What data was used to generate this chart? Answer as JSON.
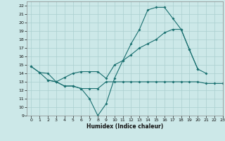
{
  "title": "",
  "xlabel": "Humidex (Indice chaleur)",
  "ylabel": "",
  "background_color": "#cce8e8",
  "grid_color": "#aacfcf",
  "line_color": "#1a7070",
  "xlim": [
    -0.5,
    23
  ],
  "ylim": [
    9,
    22.5
  ],
  "xticks": [
    0,
    1,
    2,
    3,
    4,
    5,
    6,
    7,
    8,
    9,
    10,
    11,
    12,
    13,
    14,
    15,
    16,
    17,
    18,
    19,
    20,
    21,
    22,
    23
  ],
  "yticks": [
    9,
    10,
    11,
    12,
    13,
    14,
    15,
    16,
    17,
    18,
    19,
    20,
    21,
    22
  ],
  "line1_x": [
    0,
    1,
    2,
    3,
    4,
    5,
    6,
    7,
    8,
    9,
    10,
    11,
    12,
    13,
    14,
    15,
    16,
    17,
    18,
    19,
    20,
    21
  ],
  "line1_y": [
    14.8,
    14.1,
    14.0,
    13.0,
    12.5,
    12.5,
    12.2,
    11.0,
    9.0,
    10.4,
    13.4,
    15.5,
    17.5,
    19.2,
    21.5,
    21.8,
    21.8,
    20.5,
    19.2,
    16.8,
    14.5,
    14.0
  ],
  "line2_x": [
    0,
    1,
    2,
    3,
    4,
    5,
    6,
    7,
    8,
    9,
    10,
    11,
    12,
    13,
    14,
    15,
    16,
    17,
    18,
    19,
    20
  ],
  "line2_y": [
    14.8,
    14.1,
    13.2,
    13.0,
    13.5,
    14.0,
    14.2,
    14.2,
    14.2,
    13.4,
    15.0,
    15.5,
    16.2,
    17.0,
    17.5,
    18.0,
    18.8,
    19.2,
    19.2,
    16.8,
    14.5
  ],
  "line3_x": [
    2,
    3,
    4,
    5,
    6,
    7,
    8,
    9,
    10,
    11,
    12,
    13,
    14,
    15,
    16,
    17,
    18,
    19,
    20,
    21,
    22,
    23
  ],
  "line3_y": [
    13.2,
    13.0,
    12.5,
    12.5,
    12.2,
    12.2,
    12.2,
    13.0,
    13.0,
    13.0,
    13.0,
    13.0,
    13.0,
    13.0,
    13.0,
    13.0,
    13.0,
    13.0,
    13.0,
    12.8,
    12.8,
    12.8
  ]
}
